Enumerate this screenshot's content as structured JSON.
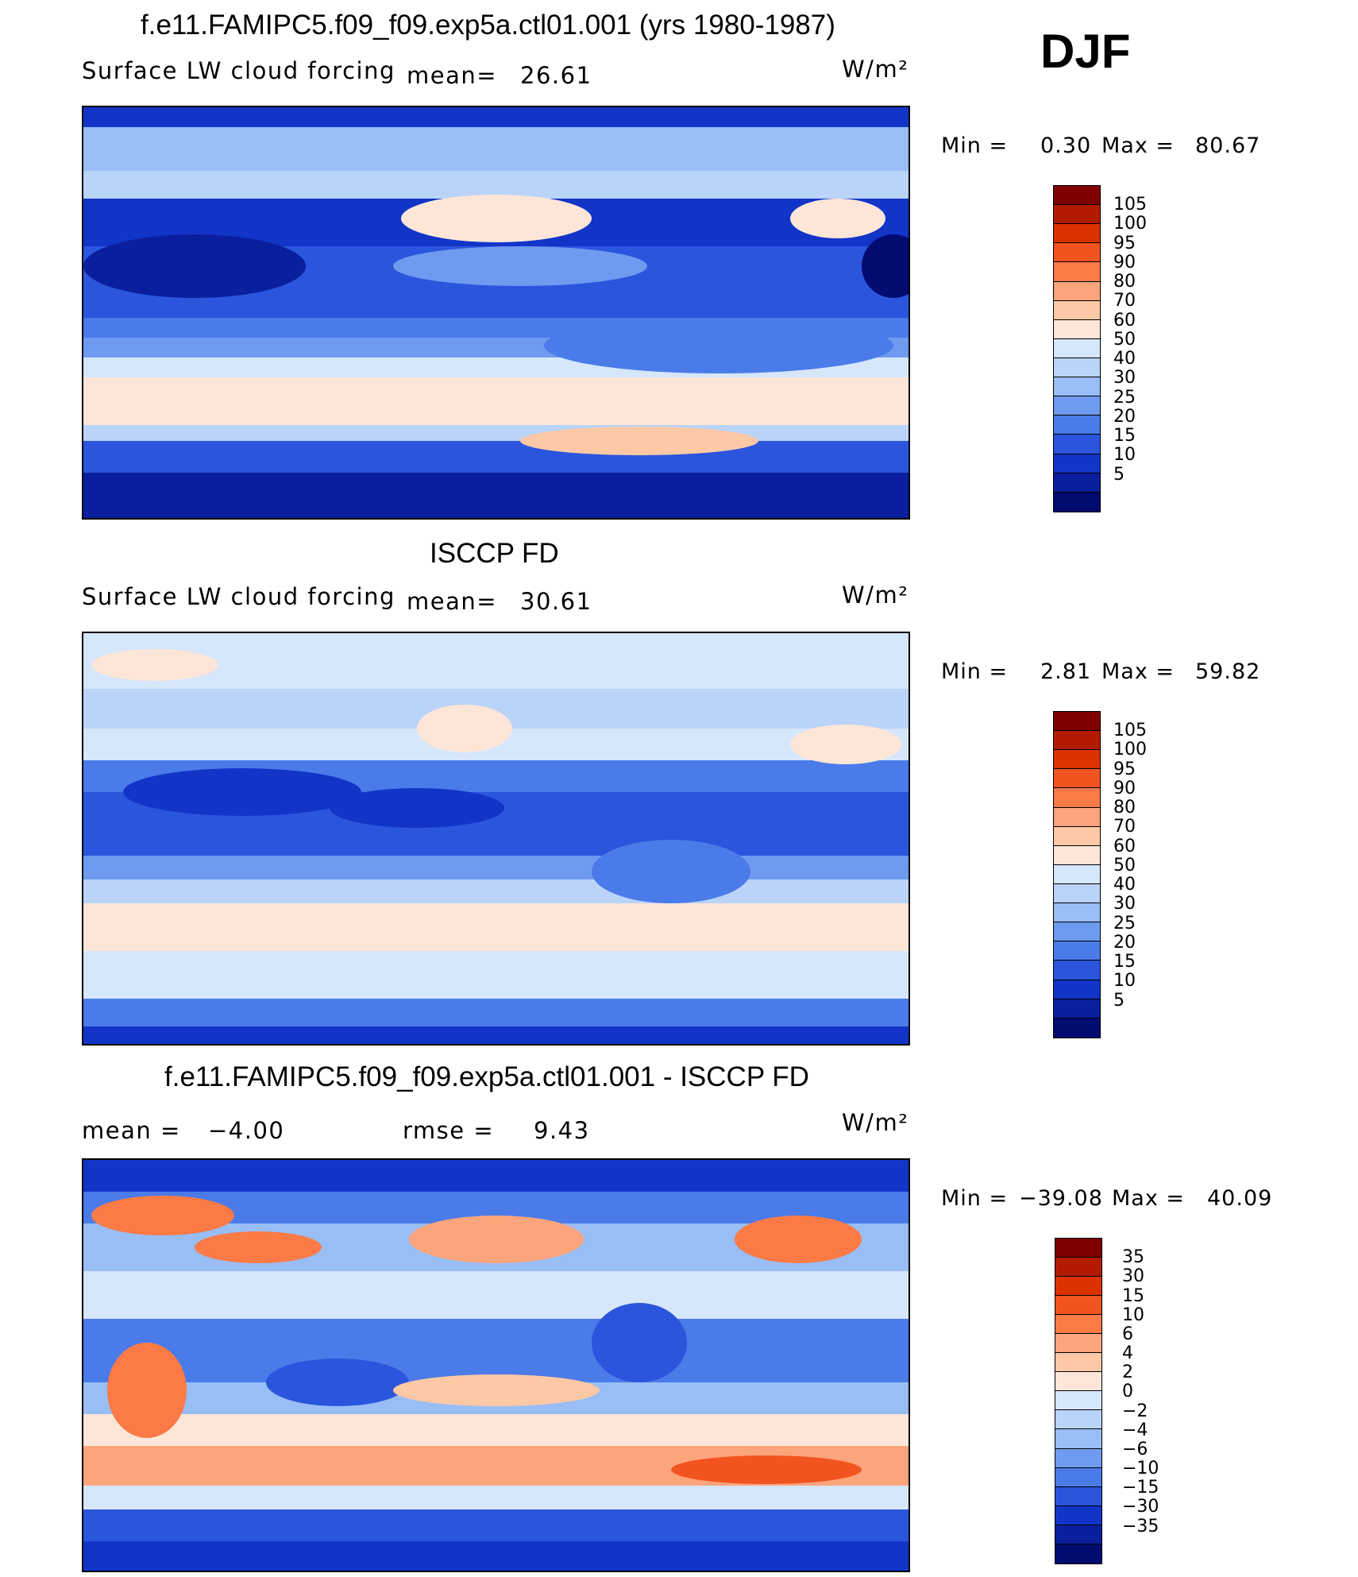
{
  "season": "DJF",
  "panels": [
    {
      "title": "f.e11.FAMIPC5.f09_f09.exp5a.ctl01.001 (yrs 1980-1987)",
      "variable": "Surface LW cloud forcing",
      "stat1_label": "mean=",
      "stat1_value": "26.61",
      "units": "W/m²",
      "min_label": "Min =",
      "min_value": "0.30",
      "max_label": "Max =",
      "max_value": "80.67",
      "colorbar_labels": [
        "105",
        "100",
        "95",
        "90",
        "80",
        "70",
        "60",
        "50",
        "40",
        "30",
        "25",
        "20",
        "15",
        "10",
        "5"
      ]
    },
    {
      "title": "ISCCP FD",
      "variable": "Surface LW cloud forcing",
      "stat1_label": "mean=",
      "stat1_value": "30.61",
      "units": "W/m²",
      "min_label": "Min =",
      "min_value": "2.81",
      "max_label": "Max =",
      "max_value": "59.82",
      "colorbar_labels": [
        "105",
        "100",
        "95",
        "90",
        "80",
        "70",
        "60",
        "50",
        "40",
        "30",
        "25",
        "20",
        "15",
        "10",
        "5"
      ]
    },
    {
      "title": "f.e11.FAMIPC5.f09_f09.exp5a.ctl01.001 - ISCCP FD",
      "stat1_label": "mean =",
      "stat1_value": "−4.00",
      "stat2_label": "rmse =",
      "stat2_value": "9.43",
      "units": "W/m²",
      "min_label": "Min =",
      "min_value": "−39.08",
      "max_label": "Max =",
      "max_value": "40.09",
      "colorbar_labels": [
        "35",
        "30",
        "15",
        "10",
        "6",
        "4",
        "2",
        "0",
        "−2",
        "−4",
        "−6",
        "−10",
        "−15",
        "−30",
        "−35"
      ]
    }
  ],
  "colors": {
    "levels": [
      "#7f0000",
      "#b31b00",
      "#dc3200",
      "#f2541f",
      "#fb7a46",
      "#fca47c",
      "#fdc8a6",
      "#fde6d8",
      "#d6e6fb",
      "#bad3f8",
      "#99bdf5",
      "#6e9bf0",
      "#4a7be9",
      "#2a55dc",
      "#1235c8",
      "#0a1f9e",
      "#020b70"
    ]
  }
}
